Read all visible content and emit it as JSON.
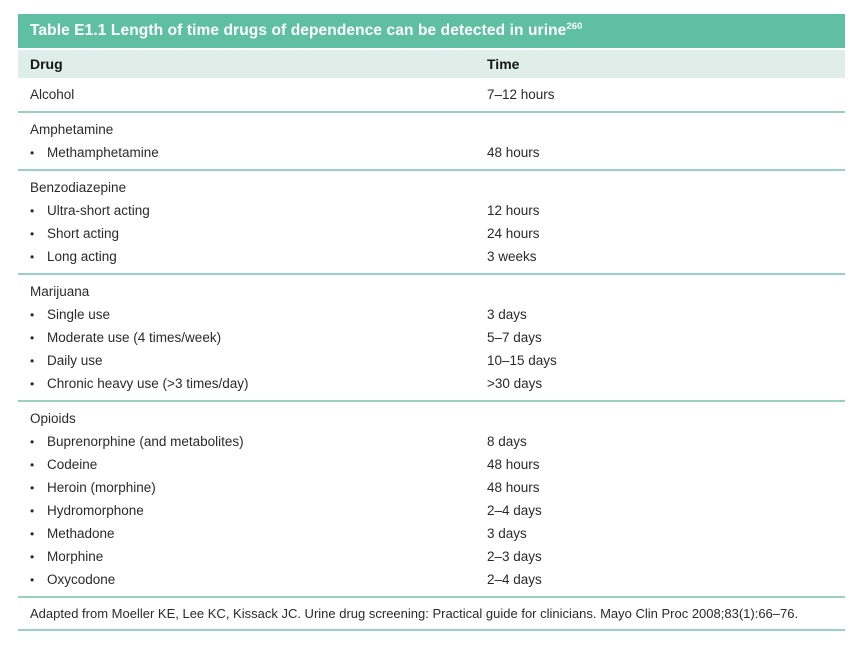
{
  "title": {
    "text": "Table E1.1 Length of time drugs of dependence can be detected in urine",
    "superscript": "260"
  },
  "columns": {
    "drug": "Drug",
    "time": "Time"
  },
  "sections": [
    {
      "rows": [
        {
          "label": "Alcohol",
          "time": "7–12 hours",
          "bullet": false
        }
      ]
    },
    {
      "rows": [
        {
          "label": "Amphetamine",
          "time": "",
          "bullet": false
        },
        {
          "label": "Methamphetamine",
          "time": "48 hours",
          "bullet": true
        }
      ]
    },
    {
      "rows": [
        {
          "label": "Benzodiazepine",
          "time": "",
          "bullet": false
        },
        {
          "label": "Ultra-short acting",
          "time": "12 hours",
          "bullet": true
        },
        {
          "label": "Short acting",
          "time": "24 hours",
          "bullet": true
        },
        {
          "label": "Long acting",
          "time": "3 weeks",
          "bullet": true
        }
      ]
    },
    {
      "rows": [
        {
          "label": "Marijuana",
          "time": "",
          "bullet": false
        },
        {
          "label": "Single use",
          "time": "3 days",
          "bullet": true
        },
        {
          "label": "Moderate use (4 times/week)",
          "time": "5–7 days",
          "bullet": true
        },
        {
          "label": "Daily use",
          "time": "10–15 days",
          "bullet": true
        },
        {
          "label": "Chronic heavy use (>3 times/day)",
          "time": ">30 days",
          "bullet": true
        }
      ]
    },
    {
      "rows": [
        {
          "label": "Opioids",
          "time": "",
          "bullet": false
        },
        {
          "label": "Buprenorphine (and metabolites)",
          "time": "8 days",
          "bullet": true
        },
        {
          "label": "Codeine",
          "time": "48 hours",
          "bullet": true
        },
        {
          "label": "Heroin (morphine)",
          "time": "48 hours",
          "bullet": true
        },
        {
          "label": "Hydromorphone",
          "time": "2–4 days",
          "bullet": true
        },
        {
          "label": "Methadone",
          "time": "3 days",
          "bullet": true
        },
        {
          "label": "Morphine",
          "time": "2–3 days",
          "bullet": true
        },
        {
          "label": "Oxycodone",
          "time": "2–4 days",
          "bullet": true
        }
      ]
    }
  ],
  "footnote": "Adapted from Moeller KE, Lee KC, Kissack JC. Urine drug screening: Practical guide for clinicians. Mayo Clin Proc 2008;83(1):66–76.",
  "colors": {
    "title_bar": "#5ec0a1",
    "header_row": "#dfeee8",
    "divider": "#9ad1bd",
    "title_text": "#ffffff",
    "body_text": "#2a2a2a"
  }
}
